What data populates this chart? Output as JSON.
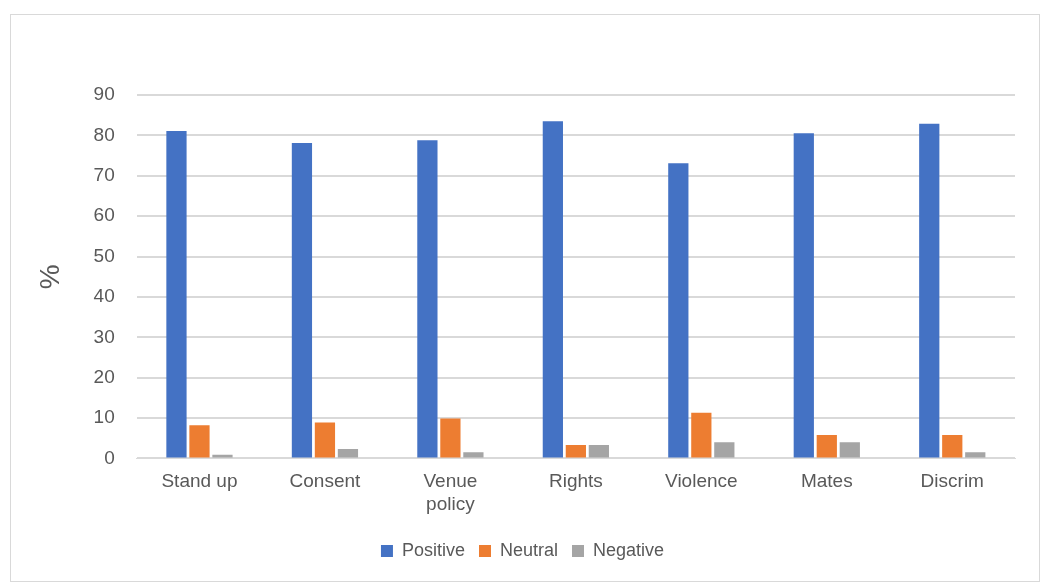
{
  "chart_data": {
    "type": "bar",
    "ylabel": "%",
    "categories": [
      "Stand up",
      "Consent",
      "Venue policy",
      "Rights",
      "Violence",
      "Mates",
      "Discrim"
    ],
    "series": [
      {
        "name": "Positive",
        "color": "#4472c4",
        "values": [
          81.1,
          78.1,
          78.8,
          83.5,
          73.1,
          80.5,
          82.9
        ]
      },
      {
        "name": "Neutral",
        "color": "#ed7d31",
        "values": [
          8.2,
          8.9,
          9.9,
          3.3,
          11.3,
          5.8,
          5.8
        ]
      },
      {
        "name": "Negative",
        "color": "#a5a5a5",
        "values": [
          0.9,
          2.3,
          1.5,
          3.3,
          4.0,
          4.0,
          1.5
        ]
      }
    ],
    "ylim": [
      0,
      90
    ],
    "yticks": [
      0,
      10,
      20,
      30,
      40,
      50,
      60,
      70,
      80,
      90
    ],
    "grid": "y",
    "legend": "bottom"
  }
}
